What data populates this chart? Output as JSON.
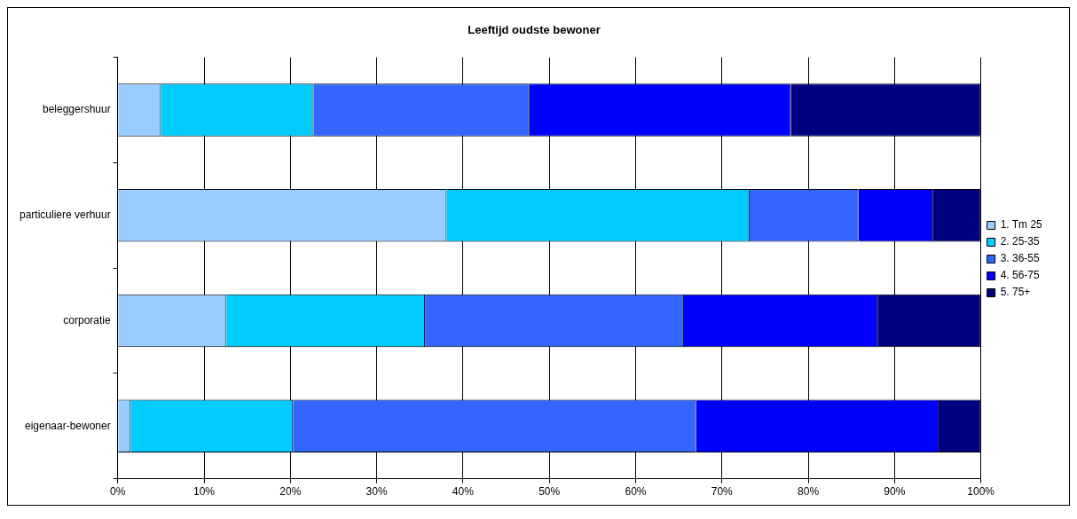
{
  "chart_data": {
    "type": "bar",
    "orientation": "horizontal",
    "stacked": true,
    "title": "Leeftijd oudste bewoner",
    "categories": [
      "beleggershuur",
      "particuliere verhuur",
      "corporatie",
      "eigenaar-bewoner"
    ],
    "series": [
      {
        "name": "1. Tm 25",
        "color": "#99ccff",
        "values": [
          5.0,
          38.1,
          12.6,
          1.5
        ]
      },
      {
        "name": "2. 25-35",
        "color": "#00ccff",
        "values": [
          17.7,
          35.1,
          23.0,
          18.8
        ]
      },
      {
        "name": "3. 36-55",
        "color": "#3366ff",
        "values": [
          25.0,
          12.6,
          30.0,
          46.7
        ]
      },
      {
        "name": "4. 56-75",
        "color": "#0000ff",
        "values": [
          30.3,
          8.6,
          22.5,
          28.2
        ]
      },
      {
        "name": "5. 75+",
        "color": "#000080",
        "values": [
          22.0,
          5.6,
          11.9,
          4.8
        ]
      }
    ],
    "xlim": [
      0,
      100
    ],
    "xticks": [
      {
        "value": 0,
        "label": "0%"
      },
      {
        "value": 10,
        "label": "10%"
      },
      {
        "value": 20,
        "label": "20%"
      },
      {
        "value": 30,
        "label": "30%"
      },
      {
        "value": 40,
        "label": "40%"
      },
      {
        "value": 50,
        "label": "50%"
      },
      {
        "value": 60,
        "label": "60%"
      },
      {
        "value": 70,
        "label": "70%"
      },
      {
        "value": 80,
        "label": "80%"
      },
      {
        "value": 90,
        "label": "90%"
      },
      {
        "value": 100,
        "label": "100%"
      }
    ],
    "grid": "x",
    "legend": "right"
  }
}
